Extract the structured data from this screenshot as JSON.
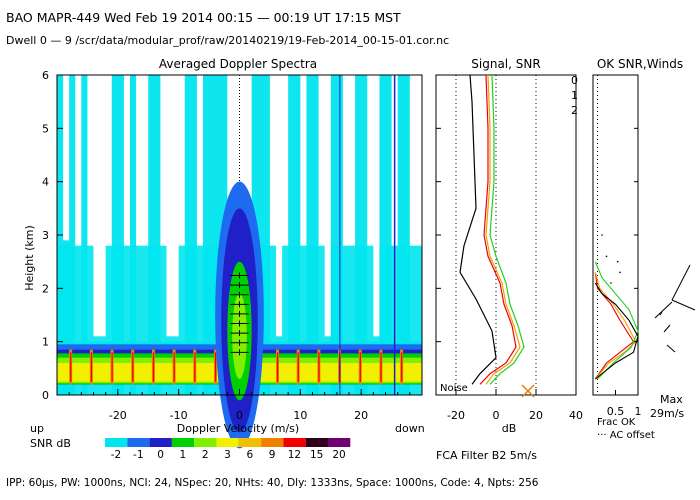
{
  "header": {
    "line1": "BAO   MAPR-449   Wed Feb 19 2014 00:15 — 00:19 UT 17:15 MST",
    "line2": "Dwell   0 —   9   /scr/data/modular_prof/raw/20140219/19-Feb-2014_00-15-01.cor.nc"
  },
  "footer": {
    "ipp": "IPP:  60μs,  PW: 1000ns,  NCI:  24,  NSpec: 20,  NHts: 40,  Dly: 1333ns,  Space: 1000ns,  Code: 4,  Npts: 256"
  },
  "legend": {
    "up": "up",
    "down": "down",
    "snr_label": "SNR dB",
    "levels": [
      "-2",
      "-1",
      "0",
      "1",
      "2",
      "3",
      "6",
      "9",
      "12",
      "15",
      "20"
    ],
    "colors": [
      "#00e5ee",
      "#1e6bf0",
      "#2020c8",
      "#00d000",
      "#80f000",
      "#f0f000",
      "#f0c000",
      "#f08000",
      "#f00000",
      "#300018",
      "#700070"
    ]
  },
  "fca_filter": "FCA Filter B2   5m/s",
  "chart_data": [
    {
      "type": "heatmap",
      "title": "Averaged Doppler Spectra",
      "xlabel": "Doppler Velocity (m/s)",
      "ylabel": "Height (km)",
      "xlim": [
        -30,
        30
      ],
      "ylim": [
        0,
        6
      ],
      "xticks": [
        "-20",
        "-10",
        "0",
        "10",
        "20"
      ],
      "yticks": [
        "0",
        "1",
        "2",
        "3",
        "4",
        "5",
        "6"
      ],
      "snr_contours_km": [
        {
          "level": "3",
          "from_km": 0.9,
          "to_km": 1.7,
          "center_ms": 0
        },
        {
          "level": "1",
          "from_km": 0.2,
          "to_km": 2.6,
          "center_ms": 0
        },
        {
          "level": "0",
          "from_km": 0.2,
          "to_km": 0.9,
          "center_ms": 0
        }
      ]
    },
    {
      "type": "line",
      "title": "Signal, SNR",
      "xlabel": "dB",
      "xlim": [
        -30,
        40
      ],
      "ylim": [
        0,
        6
      ],
      "xticks": [
        "-20",
        "0",
        "20",
        "40"
      ],
      "noise_label": "Noise",
      "series": [
        {
          "name": "0",
          "color": "#f00000",
          "points": [
            [
              -8,
              0.2
            ],
            [
              -3,
              0.4
            ],
            [
              5,
              0.6
            ],
            [
              10,
              0.9
            ],
            [
              8,
              1.3
            ],
            [
              4,
              1.7
            ],
            [
              2,
              2.1
            ],
            [
              -4,
              2.6
            ],
            [
              -6,
              3.0
            ],
            [
              -4,
              4.0
            ],
            [
              -4,
              5.0
            ],
            [
              -5,
              6.0
            ]
          ]
        },
        {
          "name": "1",
          "color": "#f0a000",
          "points": [
            [
              -5,
              0.2
            ],
            [
              -1,
              0.4
            ],
            [
              7,
              0.6
            ],
            [
              12,
              0.9
            ],
            [
              9,
              1.3
            ],
            [
              5,
              1.7
            ],
            [
              3,
              2.1
            ],
            [
              -3,
              2.6
            ],
            [
              -5,
              3.0
            ],
            [
              -3,
              4.0
            ],
            [
              -3,
              5.0
            ],
            [
              -4,
              6.0
            ]
          ]
        },
        {
          "name": "2",
          "color": "#20d020",
          "points": [
            [
              -3,
              0.2
            ],
            [
              2,
              0.4
            ],
            [
              9,
              0.6
            ],
            [
              14,
              0.9
            ],
            [
              11,
              1.3
            ],
            [
              7,
              1.7
            ],
            [
              5,
              2.1
            ],
            [
              0,
              2.6
            ],
            [
              -3,
              3.0
            ],
            [
              -1,
              4.0
            ],
            [
              -1,
              5.0
            ],
            [
              -2,
              6.0
            ]
          ]
        },
        {
          "name": "Noise",
          "color": "#000000",
          "points": [
            [
              -12,
              0.2
            ],
            [
              -8,
              0.4
            ],
            [
              0,
              0.7
            ],
            [
              -2,
              1.2
            ],
            [
              -10,
              1.8
            ],
            [
              -18,
              2.3
            ],
            [
              -16,
              2.8
            ],
            [
              -10,
              3.5
            ],
            [
              -11,
              4.5
            ],
            [
              -12,
              5.5
            ],
            [
              -13,
              6.0
            ]
          ]
        }
      ]
    },
    {
      "type": "line",
      "title": "OK  SNR,Winds",
      "xlabel": "Frac OK",
      "xlim": [
        0,
        1
      ],
      "ylim": [
        0,
        6
      ],
      "xticks": [
        "0.5",
        "1"
      ],
      "max_label": "Max",
      "max_value": "29m/s",
      "offset_label": "··· AC offset",
      "series": [
        {
          "name": "0",
          "color": "#f00000",
          "points": [
            [
              0.05,
              0.3
            ],
            [
              0.3,
              0.6
            ],
            [
              0.6,
              0.8
            ],
            [
              0.9,
              1.0
            ],
            [
              0.6,
              1.4
            ],
            [
              0.4,
              1.7
            ],
            [
              0.1,
              2.0
            ],
            [
              0.05,
              2.3
            ]
          ]
        },
        {
          "name": "1",
          "color": "#f0a000",
          "points": [
            [
              0.05,
              0.3
            ],
            [
              0.35,
              0.6
            ],
            [
              0.7,
              0.8
            ],
            [
              0.95,
              1.0
            ],
            [
              0.7,
              1.4
            ],
            [
              0.45,
              1.7
            ],
            [
              0.15,
              2.0
            ],
            [
              0.05,
              2.3
            ]
          ]
        },
        {
          "name": "2",
          "color": "#20d020",
          "points": [
            [
              0.1,
              0.3
            ],
            [
              0.45,
              0.6
            ],
            [
              0.85,
              0.9
            ],
            [
              1.0,
              1.2
            ],
            [
              0.8,
              1.6
            ],
            [
              0.5,
              1.9
            ],
            [
              0.2,
              2.2
            ],
            [
              0.05,
              2.5
            ]
          ]
        },
        {
          "name": "Frac OK",
          "color": "#000000",
          "points": [
            [
              0.05,
              0.3
            ],
            [
              0.5,
              0.6
            ],
            [
              0.9,
              0.8
            ],
            [
              1.0,
              1.1
            ],
            [
              0.8,
              1.4
            ],
            [
              0.5,
              1.7
            ],
            [
              0.2,
              1.9
            ],
            [
              0.05,
              2.1
            ]
          ]
        }
      ]
    }
  ]
}
